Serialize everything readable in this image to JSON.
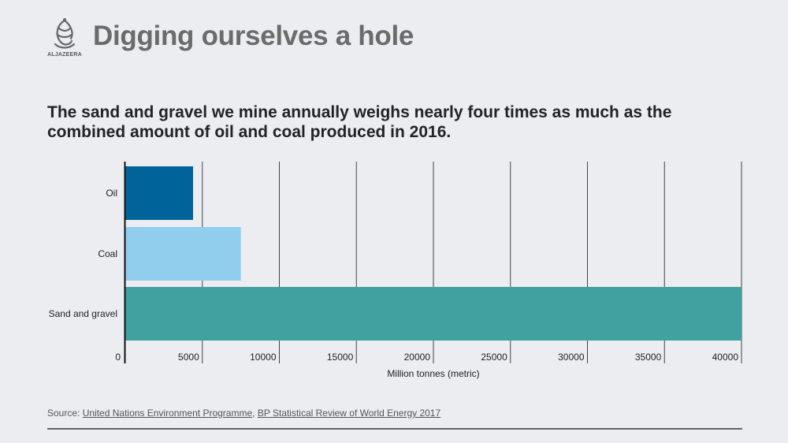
{
  "header": {
    "logo_text": "ALJAZEERA",
    "title": "Digging ourselves a hole"
  },
  "subtitle": "The sand and gravel we mine annually weighs nearly four times as much as the combined amount of oil and coal produced in 2016.",
  "chart_data": {
    "type": "bar",
    "orientation": "horizontal",
    "categories": [
      "Oil",
      "Coal",
      "Sand and gravel"
    ],
    "values": [
      4400,
      7500,
      40000
    ],
    "colors": [
      "#00649a",
      "#91cdec",
      "#41a1a1"
    ],
    "xlabel": "Million tonnes (metric)",
    "xlim": [
      0,
      40000
    ],
    "xticks": [
      0,
      5000,
      10000,
      15000,
      20000,
      25000,
      30000,
      35000,
      40000
    ],
    "grid": true
  },
  "source": {
    "prefix": "Source: ",
    "link1": "United Nations Environment Programme",
    "separator": ", ",
    "link2": "BP Statistical Review of World Energy 2017"
  }
}
